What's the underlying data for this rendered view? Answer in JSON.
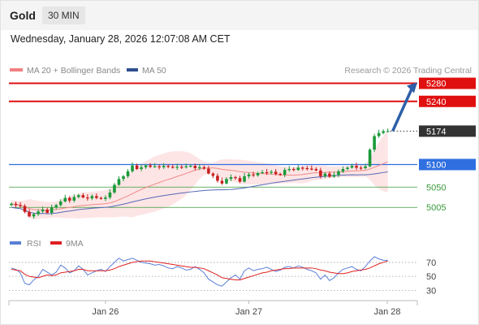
{
  "header": {
    "instrument": "Gold",
    "timeframe": "30 MIN",
    "timestamp": "Wednesday, January 28, 2026 12:07:08 AM CET"
  },
  "main_legend": [
    {
      "label": "MA 20 + Bollinger Bands",
      "color": "#f08080"
    },
    {
      "label": "MA 50",
      "color": "#2e4f8f"
    }
  ],
  "source": "Research © 2026 Trading Central",
  "rsi_legend": [
    {
      "label": "RSI",
      "color": "#5b7fd6"
    },
    {
      "label": "9MA",
      "color": "#e02020"
    }
  ],
  "colors": {
    "up": "#1a9a3a",
    "down": "#c81e1e",
    "resistance": "#e01010",
    "support": "#2f6fe0",
    "green_level": "#3a9a3a",
    "current": "#333333",
    "arrow": "#2e5fa8",
    "bb_fill": "#fde0e0",
    "ma20": "#f08a8a",
    "ma50": "#5568b8",
    "rsi": "#5b7fd6",
    "rsi_ma": "#e02020"
  },
  "chart_data": {
    "type": "candlestick",
    "y_range": [
      4955,
      5290
    ],
    "x_labels": [
      "Jan 26",
      "Jan 27",
      "Jan 28"
    ],
    "levels": [
      {
        "value": 5280,
        "label": "5280",
        "type": "resistance"
      },
      {
        "value": 5240,
        "label": "5240",
        "type": "resistance"
      },
      {
        "value": 5174,
        "label": "5174",
        "type": "current"
      },
      {
        "value": 5100,
        "label": "5100",
        "type": "pivot"
      },
      {
        "value": 5050,
        "label": "5050",
        "type": "support"
      },
      {
        "value": 5005,
        "label": "5005",
        "type": "support"
      }
    ],
    "closes": [
      5013,
      5010,
      5008,
      4995,
      4985,
      4990,
      4996,
      5000,
      4993,
      5005,
      5010,
      5018,
      5026,
      5020,
      5028,
      5032,
      5027,
      5025,
      5030,
      5026,
      5024,
      5027,
      5038,
      5055,
      5068,
      5074,
      5085,
      5098,
      5090,
      5094,
      5098,
      5095,
      5096,
      5094,
      5097,
      5095,
      5093,
      5095,
      5094,
      5096,
      5097,
      5092,
      5094,
      5091,
      5080,
      5075,
      5064,
      5058,
      5068,
      5072,
      5070,
      5062,
      5074,
      5078,
      5076,
      5081,
      5083,
      5082,
      5084,
      5079,
      5077,
      5088,
      5090,
      5088,
      5093,
      5092,
      5091,
      5090,
      5087,
      5074,
      5080,
      5073,
      5077,
      5085,
      5090,
      5093,
      5097,
      5093,
      5092,
      5096,
      5133,
      5163,
      5170,
      5174,
      5174
    ],
    "rsi": {
      "y_range": [
        20,
        85
      ],
      "ticks": [
        70,
        50,
        30
      ],
      "values": [
        62,
        60,
        55,
        40,
        38,
        45,
        50,
        60,
        56,
        52,
        56,
        66,
        62,
        55,
        58,
        65,
        60,
        52,
        55,
        58,
        60,
        57,
        64,
        70,
        76,
        72,
        74,
        76,
        73,
        70,
        69,
        68,
        66,
        67,
        65,
        62,
        61,
        64,
        62,
        59,
        60,
        64,
        60,
        55,
        46,
        42,
        38,
        36,
        42,
        48,
        52,
        46,
        58,
        62,
        58,
        60,
        61,
        63,
        60,
        57,
        59,
        63,
        64,
        62,
        65,
        63,
        60,
        58,
        55,
        46,
        52,
        44,
        48,
        55,
        60,
        62,
        64,
        60,
        58,
        64,
        72,
        78,
        75,
        73,
        73
      ],
      "ma9": [
        60,
        59,
        58,
        53,
        50,
        49,
        48,
        50,
        52,
        51,
        52,
        55,
        56,
        57,
        58,
        60,
        60,
        58,
        58,
        58,
        58,
        58,
        59,
        61,
        64,
        66,
        68,
        70,
        71,
        72,
        72,
        72,
        71,
        70,
        69,
        68,
        67,
        66,
        65,
        64,
        63,
        63,
        62,
        61,
        58,
        55,
        52,
        48,
        47,
        46,
        45,
        45,
        47,
        49,
        51,
        53,
        55,
        56,
        58,
        59,
        60,
        61,
        61,
        62,
        62,
        62,
        62,
        62,
        61,
        59,
        58,
        56,
        55,
        54,
        54,
        55,
        57,
        58,
        59,
        60,
        62,
        65,
        68,
        70,
        72
      ]
    }
  }
}
